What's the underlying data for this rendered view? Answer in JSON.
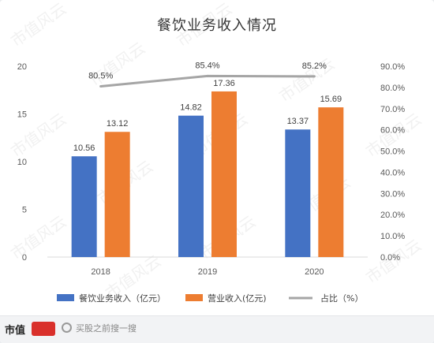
{
  "chart_data": {
    "type": "bar",
    "title": "餐饮业务收入情况",
    "categories": [
      "2018",
      "2019",
      "2020"
    ],
    "series": [
      {
        "name": "餐饮业务收入（亿元）",
        "values": [
          10.56,
          14.82,
          13.37
        ],
        "color": "#4472c4",
        "axis": "left"
      },
      {
        "name": "营业收入(亿元)",
        "values": [
          13.12,
          17.36,
          15.69
        ],
        "color": "#ed7d31",
        "axis": "left"
      },
      {
        "name": "占比（%）",
        "type": "line",
        "values": [
          80.5,
          85.4,
          85.2
        ],
        "value_labels": [
          "80.5%",
          "85.4%",
          "85.2%"
        ],
        "color": "#a5a5a5",
        "axis": "right"
      }
    ],
    "y_left": {
      "min": 0,
      "max": 20,
      "ticks": [
        "0",
        "5",
        "10",
        "15",
        "20"
      ]
    },
    "y_right": {
      "min": 0,
      "max": 90,
      "ticks": [
        "0.0%",
        "10.0%",
        "20.0%",
        "30.0%",
        "40.0%",
        "50.0%",
        "60.0%",
        "70.0%",
        "80.0%",
        "90.0%"
      ]
    },
    "grid": false,
    "legend_position": "bottom"
  },
  "footer": {
    "logo_text": "市值",
    "logo_mark_text": "风云",
    "search_placeholder": "买股之前搜一搜"
  },
  "watermark": "市值风云"
}
